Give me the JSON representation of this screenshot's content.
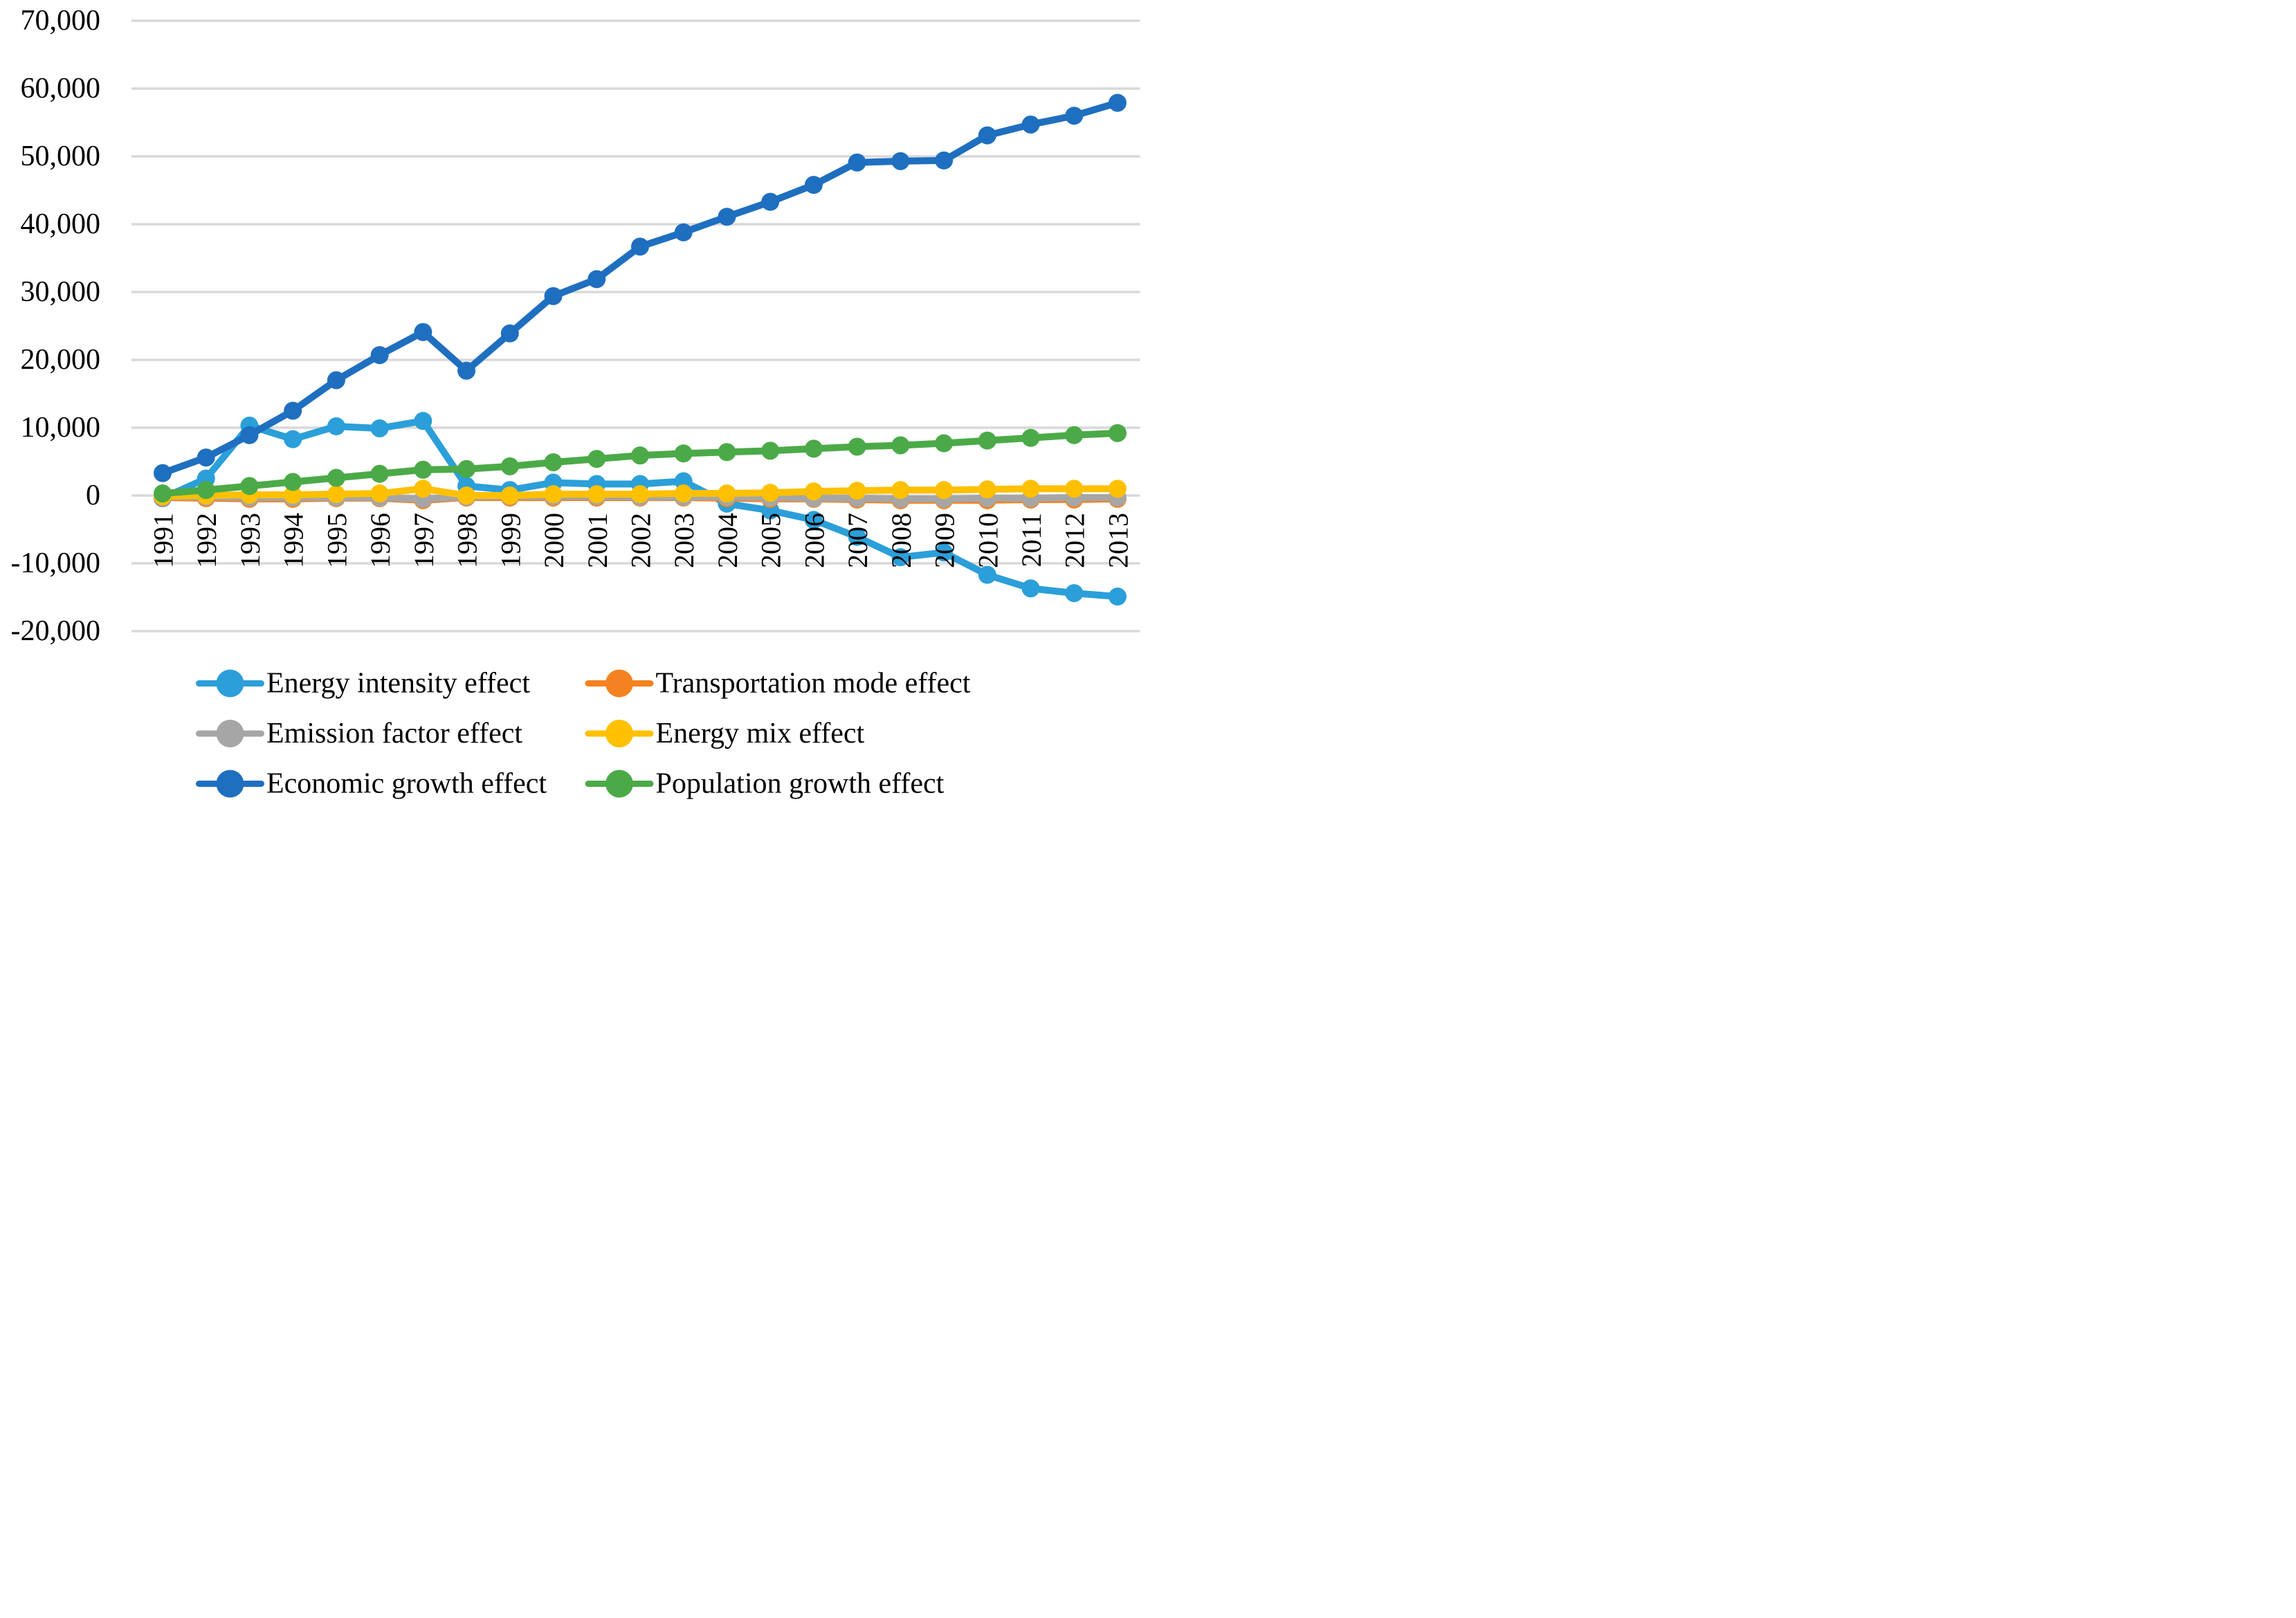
{
  "figure": {
    "background": "#ffffff",
    "grid_color": "#d9d9d9",
    "text_color": "#000000"
  },
  "chart_data": {
    "type": "line",
    "title": "",
    "xlabel": "",
    "ylabel": "",
    "grid": "horizontal-only",
    "legend_position": "bottom-two-columns",
    "ylim": [
      -20000,
      70000
    ],
    "ytick_step": 10000,
    "x": [
      1991,
      1992,
      1993,
      1994,
      1995,
      1996,
      1997,
      1998,
      1999,
      2000,
      2001,
      2002,
      2003,
      2004,
      2005,
      2006,
      2007,
      2008,
      2009,
      2010,
      2011,
      2012,
      2013
    ],
    "x_tick_labels": [
      "1991",
      "1992",
      "1993",
      "1994",
      "1995",
      "1996",
      "1997",
      "1998",
      "1999",
      "2000",
      "2001",
      "2002",
      "2003",
      "2004",
      "2005",
      "2006",
      "2007",
      "2008",
      "2009",
      "2010",
      "2011",
      "2012",
      "2013"
    ],
    "y_tick_values": [
      70000,
      60000,
      50000,
      40000,
      30000,
      20000,
      10000,
      0,
      -10000,
      -20000
    ],
    "y_tick_labels": [
      "70,000",
      "60,000",
      "50,000",
      "40,000",
      "30,000",
      "20,000",
      "10,000",
      "0",
      "-10,000",
      "-20,000"
    ],
    "series": [
      {
        "name": "Energy intensity effect",
        "color": "#2B9FD9",
        "values": [
          -400,
          2500,
          10300,
          8300,
          10200,
          9900,
          11000,
          1400,
          800,
          1900,
          1700,
          1700,
          2100,
          -1200,
          -2200,
          -3600,
          -6100,
          -9100,
          -8400,
          -11700,
          -13700,
          -14400,
          -14900
        ]
      },
      {
        "name": "Transportation mode effect",
        "color": "#F58220",
        "values": [
          -300,
          -400,
          -500,
          -500,
          -400,
          -400,
          -700,
          -300,
          -300,
          -300,
          -300,
          -300,
          -300,
          -400,
          -500,
          -500,
          -600,
          -700,
          -700,
          -700,
          -600,
          -600,
          -500
        ]
      },
      {
        "name": "Emission factor effect",
        "color": "#A6A6A6",
        "values": [
          -200,
          -200,
          -300,
          -300,
          -300,
          -300,
          -500,
          -200,
          -100,
          -100,
          -100,
          -200,
          -200,
          -200,
          -300,
          -400,
          -400,
          -500,
          -500,
          -400,
          -400,
          -300,
          -300
        ]
      },
      {
        "name": "Energy mix effect",
        "color": "#FFC000",
        "values": [
          -100,
          0,
          100,
          100,
          200,
          300,
          1000,
          0,
          0,
          200,
          200,
          200,
          300,
          300,
          400,
          600,
          700,
          800,
          800,
          900,
          1000,
          1000,
          1000
        ]
      },
      {
        "name": "Economic growth effect",
        "color": "#1F6FC0",
        "values": [
          3300,
          5600,
          8900,
          12500,
          17000,
          20700,
          24100,
          18400,
          23900,
          29400,
          31900,
          36700,
          38800,
          41100,
          43300,
          45800,
          49100,
          49300,
          49400,
          53100,
          54700,
          56000,
          57900
        ]
      },
      {
        "name": "Population growth effect",
        "color": "#4BAA47",
        "values": [
          300,
          800,
          1400,
          2000,
          2600,
          3200,
          3800,
          3900,
          4300,
          4900,
          5400,
          5900,
          6200,
          6400,
          6600,
          6900,
          7200,
          7400,
          7700,
          8100,
          8500,
          8900,
          9200
        ]
      }
    ]
  }
}
